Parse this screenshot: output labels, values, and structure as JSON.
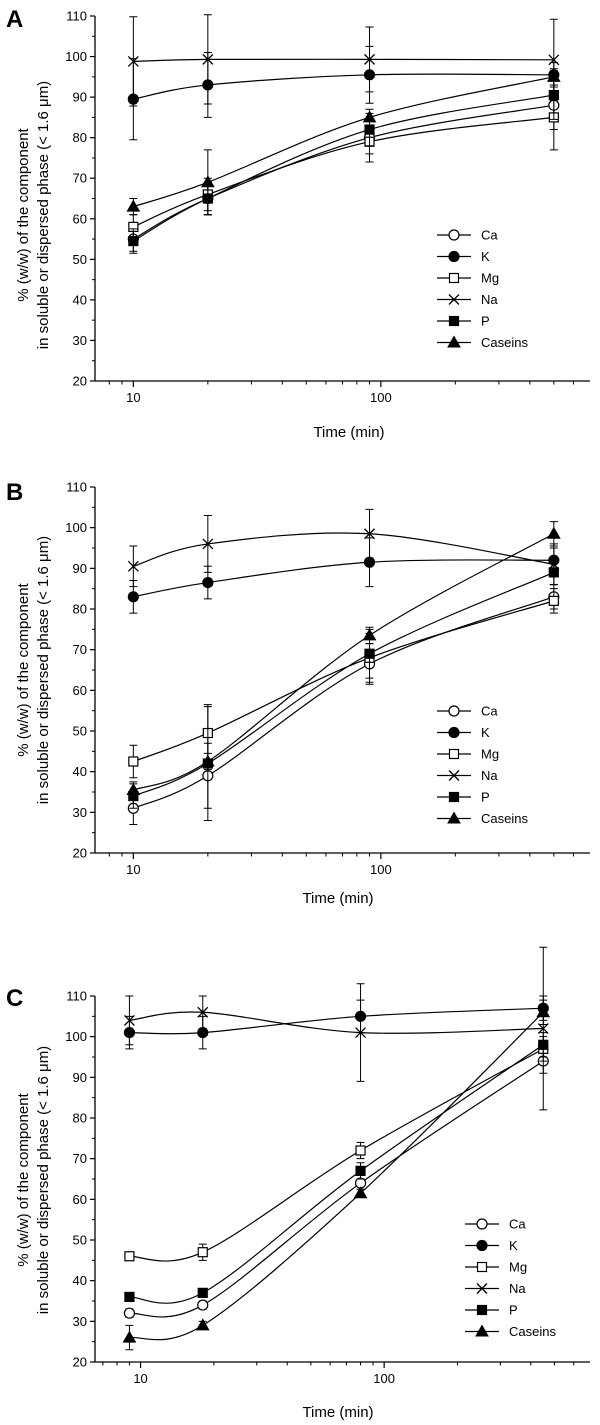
{
  "chart_data": [
    {
      "type": "scatter",
      "panel_label": "A",
      "xlabel": "Time (min)",
      "ylabel": [
        "% (w/w) of the component",
        "in soluble or dispersed phase (< 1.6 μm)"
      ],
      "xscale": "log",
      "xlim": [
        7,
        700
      ],
      "ylim": [
        20,
        110
      ],
      "xticks": [
        {
          "value": 10,
          "label": "10"
        },
        {
          "value": 100,
          "label": "100"
        }
      ],
      "yticks": [
        20,
        30,
        40,
        50,
        60,
        70,
        80,
        90,
        100,
        110
      ],
      "legend_position": "lower-right",
      "series": [
        {
          "name": "Ca",
          "marker": "circle-open",
          "x": [
            10,
            20,
            90,
            500
          ],
          "y": [
            55,
            65,
            80,
            88
          ],
          "err": [
            3,
            4,
            4,
            6
          ]
        },
        {
          "name": "K",
          "marker": "circle-filled",
          "x": [
            10,
            20,
            90,
            500
          ],
          "y": [
            89.5,
            93,
            95.5,
            95.5
          ],
          "err": [
            10,
            8,
            7,
            3
          ]
        },
        {
          "name": "Mg",
          "marker": "square-open",
          "x": [
            10,
            20,
            90,
            500
          ],
          "y": [
            58,
            66,
            79,
            85
          ],
          "err": [
            3,
            4,
            5,
            8
          ]
        },
        {
          "name": "Na",
          "marker": "cross",
          "x": [
            10,
            20,
            90,
            500
          ],
          "y": [
            98.8,
            99.3,
            99.3,
            99.2
          ],
          "err": [
            11,
            11,
            8,
            10
          ]
        },
        {
          "name": "P",
          "marker": "square-filled",
          "x": [
            10,
            20,
            90,
            500
          ],
          "y": [
            54.5,
            65,
            82,
            90.5
          ],
          "err": [
            3,
            4,
            4,
            6
          ]
        },
        {
          "name": "Caseins",
          "marker": "triangle-filled",
          "x": [
            10,
            20,
            90,
            500
          ],
          "y": [
            63,
            69,
            85,
            95
          ],
          "err": [
            2,
            8,
            2,
            2
          ]
        }
      ]
    },
    {
      "type": "scatter",
      "panel_label": "B",
      "xlabel": "Time (min)",
      "ylabel": [
        "% (w/w) of the component",
        "in soluble or dispersed phase (< 1.6 μm)"
      ],
      "xscale": "log",
      "xlim": [
        7,
        700
      ],
      "ylim": [
        20,
        110
      ],
      "xticks": [
        {
          "value": 10,
          "label": "10"
        },
        {
          "value": 100,
          "label": "100"
        }
      ],
      "yticks": [
        20,
        30,
        40,
        50,
        60,
        70,
        80,
        90,
        100,
        110
      ],
      "legend_position": "lower-right",
      "series": [
        {
          "name": "Ca",
          "marker": "circle-open",
          "x": [
            10,
            20,
            90,
            500
          ],
          "y": [
            31,
            39,
            66.5,
            83
          ],
          "err": [
            4,
            8,
            5,
            3
          ]
        },
        {
          "name": "K",
          "marker": "circle-filled",
          "x": [
            10,
            20,
            90,
            500
          ],
          "y": [
            83,
            86.5,
            91.5,
            92
          ],
          "err": [
            4,
            4,
            6,
            3
          ]
        },
        {
          "name": "Mg",
          "marker": "square-open",
          "x": [
            10,
            20,
            90,
            500
          ],
          "y": [
            42.5,
            49.5,
            68,
            82
          ],
          "err": [
            4,
            7,
            6,
            3
          ]
        },
        {
          "name": "Na",
          "marker": "cross",
          "x": [
            10,
            20,
            90,
            500
          ],
          "y": [
            90.5,
            96,
            98.5,
            91
          ],
          "err": [
            5,
            7,
            6,
            5
          ]
        },
        {
          "name": "P",
          "marker": "square-filled",
          "x": [
            10,
            20,
            90,
            500
          ],
          "y": [
            34,
            42,
            69,
            89
          ],
          "err": [
            3,
            14,
            6,
            3
          ]
        },
        {
          "name": "Caseins",
          "marker": "triangle-filled",
          "x": [
            10,
            20,
            90,
            500
          ],
          "y": [
            35.5,
            42.5,
            73.5,
            98.5
          ],
          "err": [
            2,
            2,
            2,
            3
          ]
        }
      ]
    },
    {
      "type": "scatter",
      "panel_label": "C",
      "xlabel": "Time (min)",
      "ylabel": [
        "% (w/w) of the component",
        "in soluble or dispersed phase (< 1.6 μm)"
      ],
      "xscale": "log",
      "xlim": [
        6.5,
        700
      ],
      "ylim": [
        20,
        110
      ],
      "xticks": [
        {
          "value": 10,
          "label": "10"
        },
        {
          "value": 100,
          "label": "100"
        }
      ],
      "yticks": [
        20,
        30,
        40,
        50,
        60,
        70,
        80,
        90,
        100,
        110
      ],
      "legend_position": "lower-right",
      "series": [
        {
          "name": "Ca",
          "marker": "circle-open",
          "x": [
            9,
            18,
            80,
            450
          ],
          "y": [
            32,
            34,
            64,
            94
          ],
          "err": [
            1,
            1,
            3,
            3
          ]
        },
        {
          "name": "K",
          "marker": "circle-filled",
          "x": [
            9,
            18,
            80,
            450
          ],
          "y": [
            101,
            101,
            105,
            107
          ],
          "err": [
            4,
            4,
            4,
            3
          ]
        },
        {
          "name": "Mg",
          "marker": "square-open",
          "x": [
            9,
            18,
            80,
            450
          ],
          "y": [
            46,
            47,
            72,
            97
          ],
          "err": [
            1,
            2,
            2,
            3
          ]
        },
        {
          "name": "Na",
          "marker": "cross",
          "x": [
            9,
            18,
            80,
            450
          ],
          "y": [
            104,
            106,
            101,
            102
          ],
          "err": [
            6,
            4,
            12,
            20
          ]
        },
        {
          "name": "P",
          "marker": "square-filled",
          "x": [
            9,
            18,
            80,
            450
          ],
          "y": [
            36,
            37,
            67,
            98
          ],
          "err": [
            1,
            1,
            2,
            3
          ]
        },
        {
          "name": "Caseins",
          "marker": "triangle-filled",
          "x": [
            9,
            18,
            80,
            450
          ],
          "y": [
            26,
            29,
            61.5,
            106
          ],
          "err": [
            3,
            1,
            1,
            3
          ]
        }
      ]
    }
  ]
}
